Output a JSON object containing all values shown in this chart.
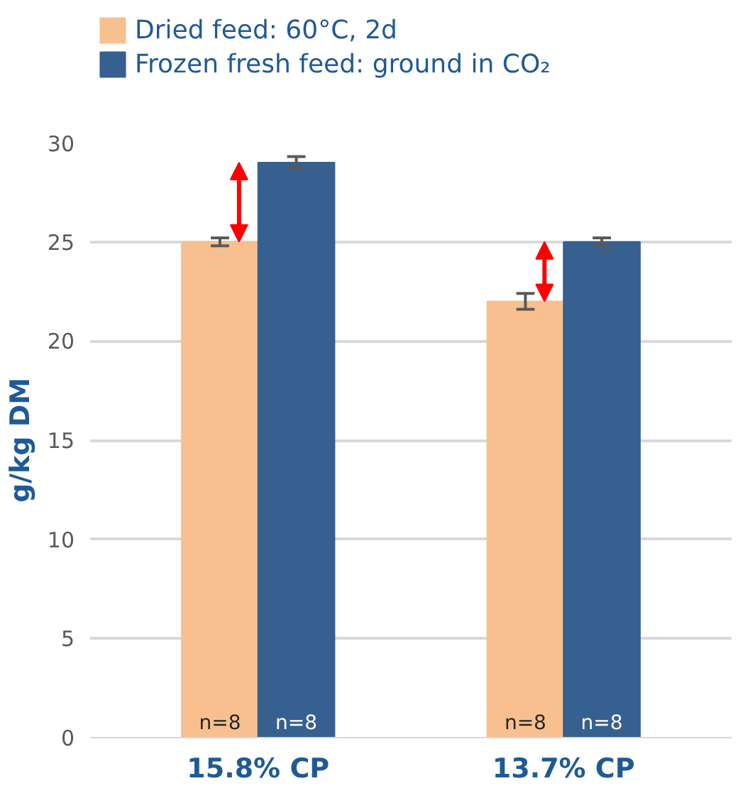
{
  "chart_data": {
    "type": "bar",
    "ylabel": "g/kg DM",
    "categories": [
      "15.8% CP",
      "13.7% CP"
    ],
    "series": [
      {
        "name": "Dried feed: 60°C, 2d",
        "color": "#f8c08f",
        "values": [
          25.0,
          22.0
        ],
        "errors": [
          0.2,
          0.4
        ]
      },
      {
        "name": "Frozen fresh feed: ground in CO₂",
        "color": "#36608f",
        "values": [
          29.0,
          25.0
        ],
        "errors": [
          0.3,
          0.2
        ]
      }
    ],
    "ylim": [
      0,
      30
    ],
    "yticks": [
      0,
      5,
      10,
      15,
      20,
      25,
      30
    ],
    "grid": "y",
    "legend": "top left",
    "annotations": [
      "n=8",
      "n=8",
      "n=8",
      "n=8"
    ]
  }
}
